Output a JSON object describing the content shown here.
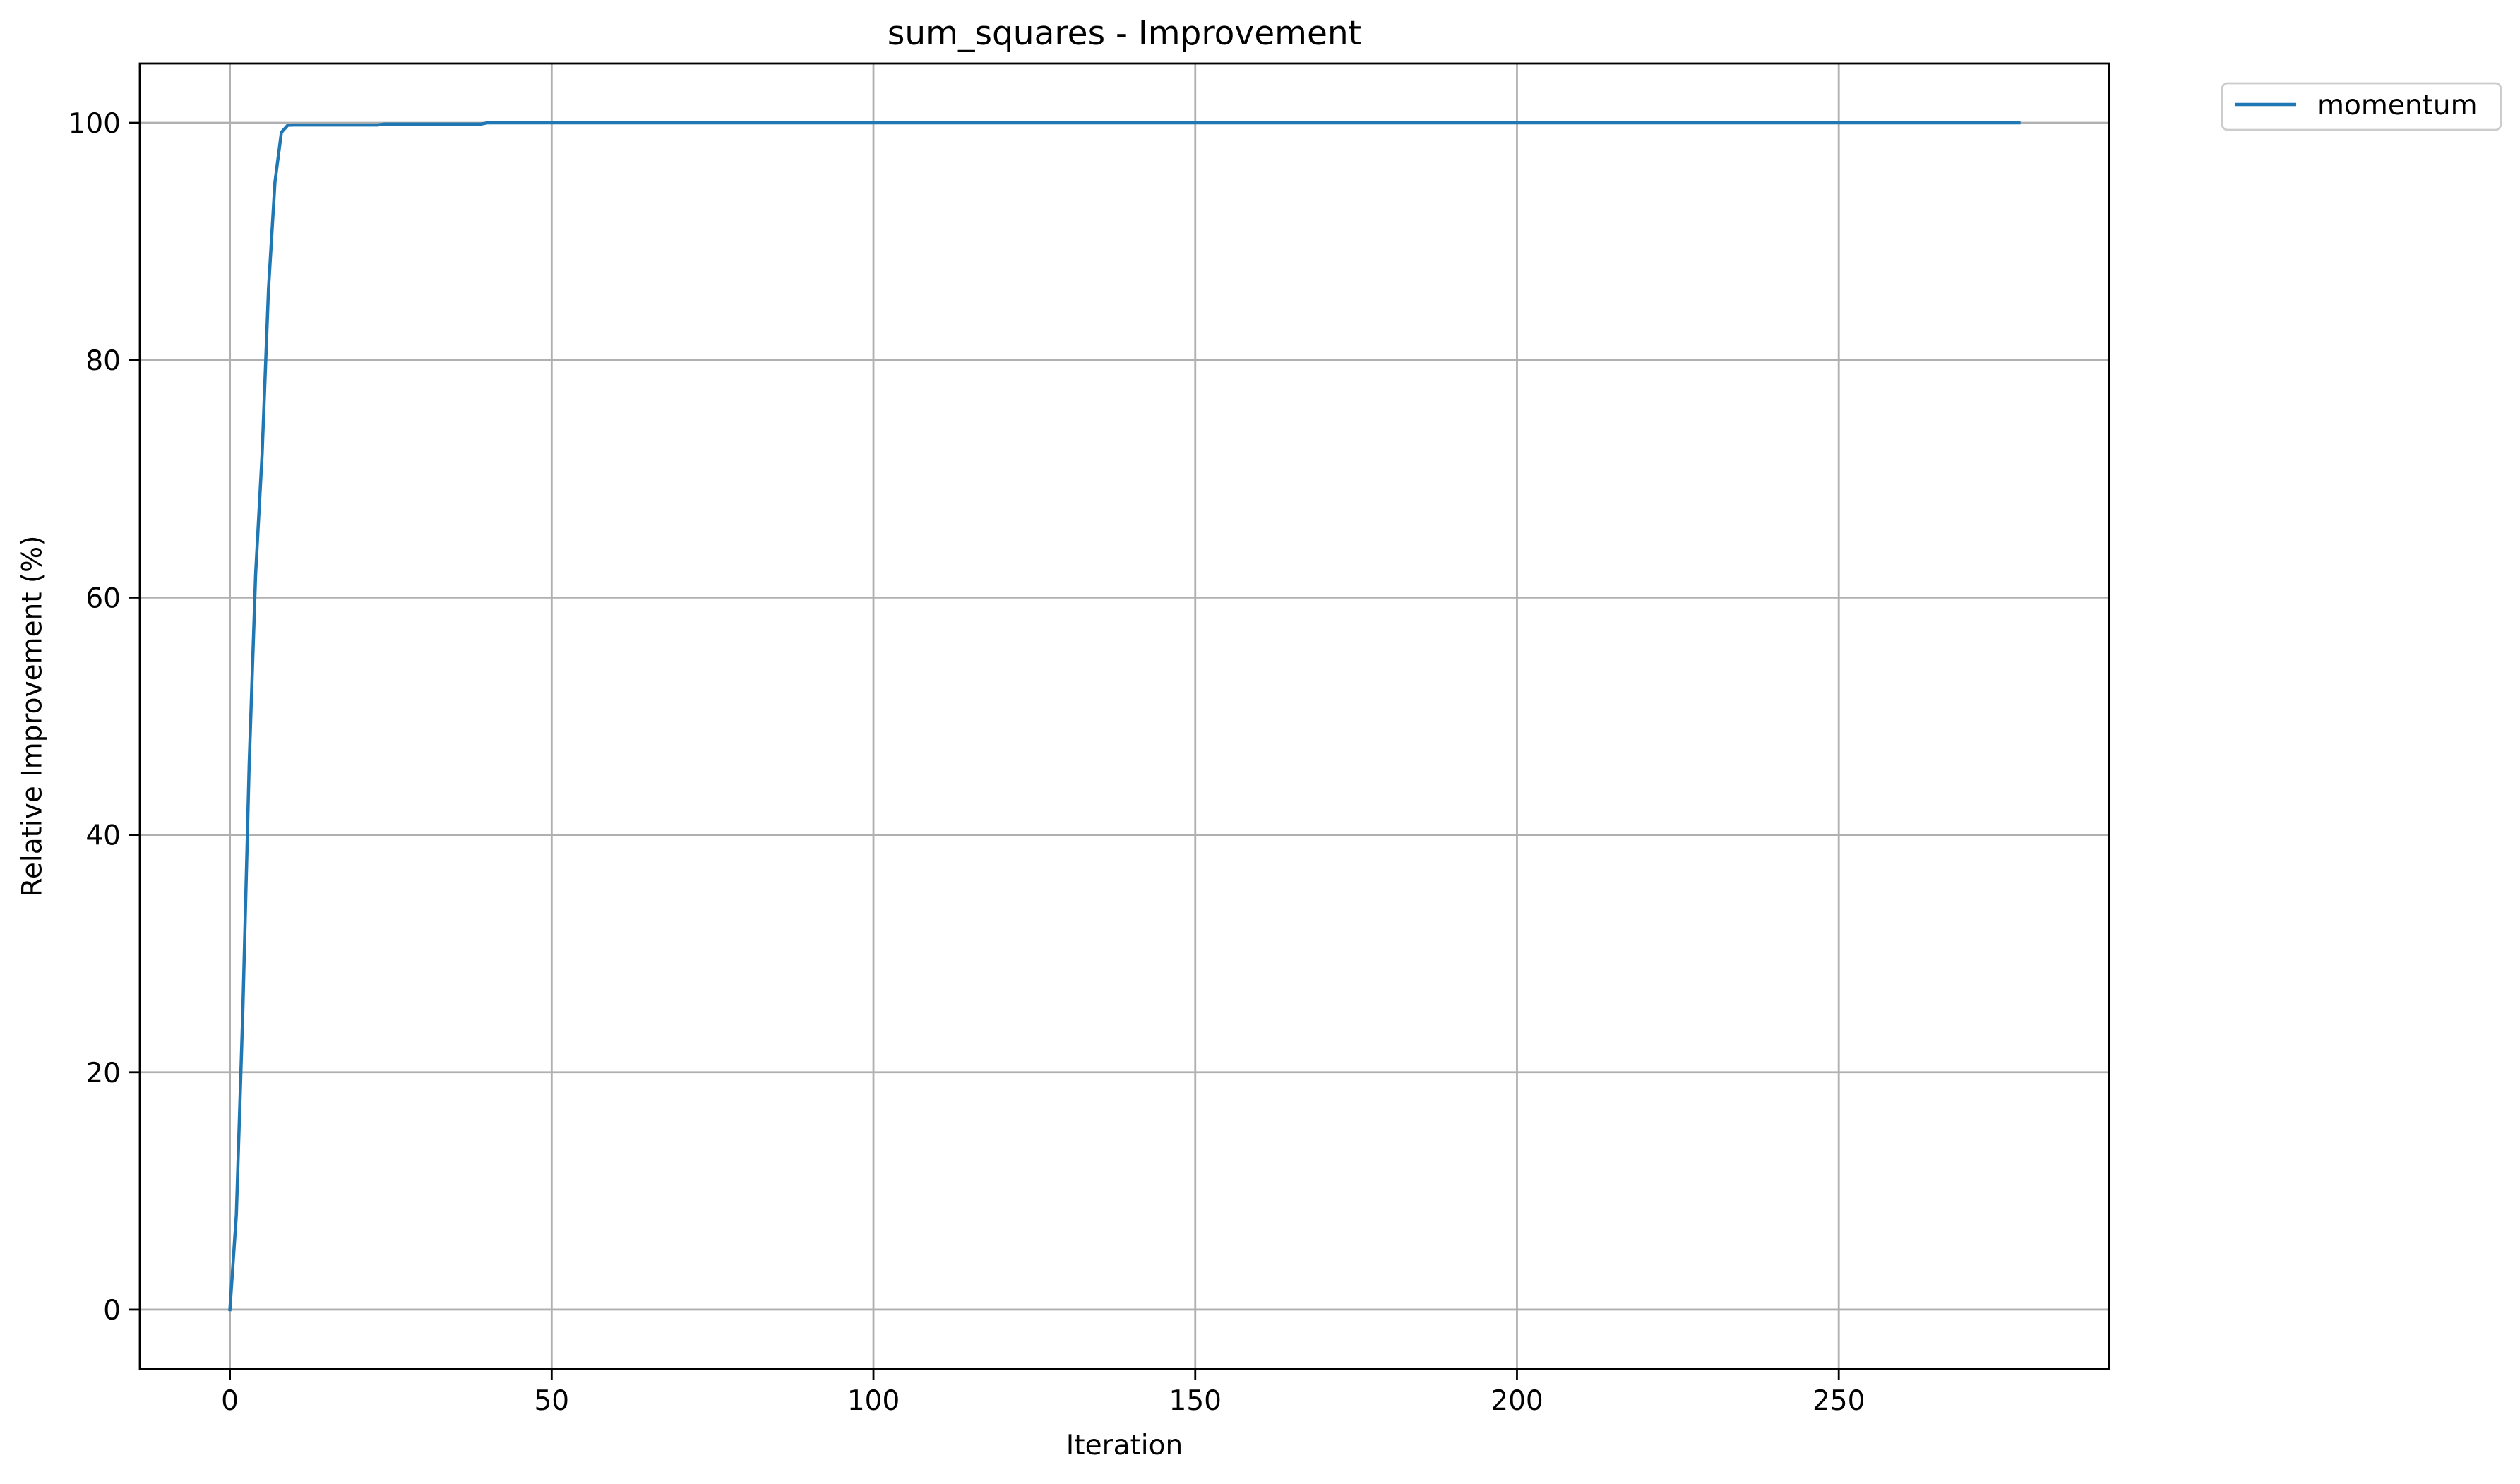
{
  "chart_data": {
    "type": "line",
    "title": "sum_squares - Improvement",
    "xlabel": "Iteration",
    "ylabel": "Relative Improvement (%)",
    "xlim": [
      -14,
      292
    ],
    "ylim": [
      -5,
      105
    ],
    "xticks": [
      {
        "value": 0,
        "label": "0"
      },
      {
        "value": 50,
        "label": "50"
      },
      {
        "value": 100,
        "label": "100"
      },
      {
        "value": 150,
        "label": "150"
      },
      {
        "value": 200,
        "label": "200"
      },
      {
        "value": 250,
        "label": "250"
      }
    ],
    "yticks": [
      {
        "value": 0,
        "label": "0"
      },
      {
        "value": 20,
        "label": "20"
      },
      {
        "value": 40,
        "label": "40"
      },
      {
        "value": 60,
        "label": "60"
      },
      {
        "value": 80,
        "label": "80"
      },
      {
        "value": 100,
        "label": "100"
      }
    ],
    "grid": true,
    "legend_position": "outside-top-right",
    "series": [
      {
        "name": "momentum",
        "color": "#1f77b4",
        "x": [
          0,
          1,
          2,
          3,
          4,
          5,
          6,
          7,
          8,
          9,
          10,
          15,
          20,
          23,
          24,
          30,
          39,
          40,
          50,
          100,
          150,
          200,
          250,
          278
        ],
        "y": [
          0,
          8,
          25,
          46,
          62,
          72,
          86,
          95,
          99.2,
          99.8,
          99.82,
          99.82,
          99.82,
          99.82,
          99.9,
          99.9,
          99.9,
          100,
          100,
          100,
          100,
          100,
          100,
          100
        ]
      }
    ]
  }
}
